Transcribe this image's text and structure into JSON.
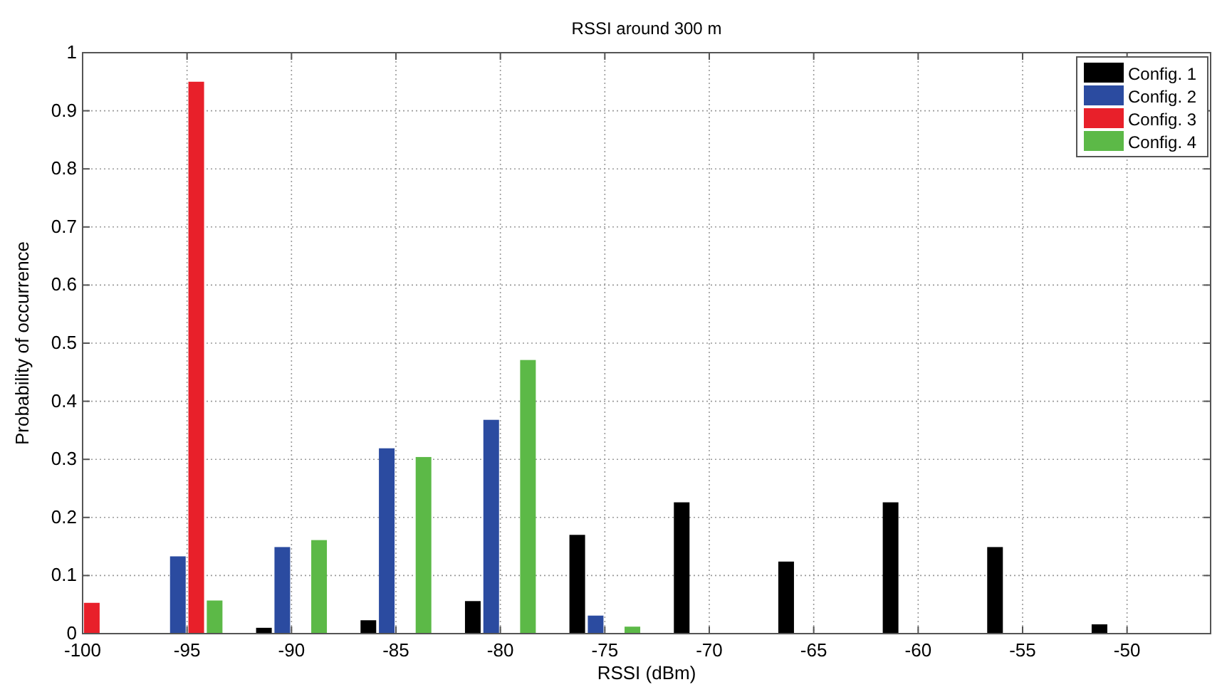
{
  "chart_data": {
    "type": "bar",
    "title": "RSSI around 300 m",
    "xlabel": "RSSI (dBm)",
    "ylabel": "Probability of occurrence",
    "x": [
      -100,
      -95,
      -90,
      -85,
      -80,
      -75,
      -70,
      -65,
      -60,
      -55,
      -50
    ],
    "series": [
      {
        "name": "Config. 1",
        "color": "#000000",
        "values": [
          null,
          0,
          0.01,
          0.023,
          0.056,
          0.17,
          0.226,
          0.124,
          0.226,
          0.149,
          0.016
        ]
      },
      {
        "name": "Config. 2",
        "color": "#2b4ba0",
        "values": [
          0,
          0.133,
          0.149,
          0.319,
          0.368,
          0.031,
          0,
          0,
          0,
          0,
          0
        ]
      },
      {
        "name": "Config. 3",
        "color": "#e8202a",
        "values": [
          0.053,
          0.95,
          0,
          0,
          0,
          0,
          0,
          0,
          0,
          0,
          0
        ]
      },
      {
        "name": "Config. 4",
        "color": "#5cb947",
        "values": [
          0,
          0.057,
          0.161,
          0.304,
          0.471,
          0.012,
          0,
          0,
          0,
          0,
          0
        ]
      }
    ],
    "xlim": [
      -100,
      -46
    ],
    "xticks": [
      -100,
      -95,
      -90,
      -85,
      -80,
      -75,
      -70,
      -65,
      -60,
      -55,
      -50
    ],
    "ylim": [
      0,
      1
    ],
    "yticks": [
      0,
      0.1,
      0.2,
      0.3,
      0.4,
      0.5,
      0.6,
      0.7,
      0.8,
      0.9,
      1
    ],
    "grid": true,
    "legend": "top right"
  }
}
